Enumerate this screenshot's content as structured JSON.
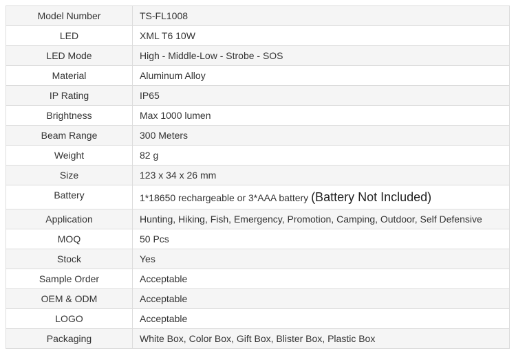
{
  "specs": [
    {
      "label": "Model Number",
      "value": "TS-FL1008"
    },
    {
      "label": "LED",
      "value": "XML T6  10W"
    },
    {
      "label": "LED Mode",
      "value": "High - Middle-Low - Strobe - SOS"
    },
    {
      "label": "Material",
      "value": "Aluminum Alloy"
    },
    {
      "label": "IP Rating",
      "value": "IP65"
    },
    {
      "label": "Brightness",
      "value": "Max 1000 lumen"
    },
    {
      "label": "Beam Range",
      "value": "300 Meters"
    },
    {
      "label": "Weight",
      "value": "82 g"
    },
    {
      "label": "Size",
      "value": "123 x 34 x 26 mm"
    },
    {
      "label": "Battery",
      "value": "1*18650 rechargeable or 3*AAA battery",
      "note": "(Battery Not Included)"
    },
    {
      "label": "Application",
      "value": "Hunting, Hiking, Fish, Emergency, Promotion, Camping, Outdoor, Self Defensive"
    },
    {
      "label": "MOQ",
      "value": "50 Pcs"
    },
    {
      "label": "Stock",
      "value": "Yes"
    },
    {
      "label": "Sample Order",
      "value": "Acceptable"
    },
    {
      "label": "OEM & ODM",
      "value": "Acceptable"
    },
    {
      "label": "LOGO",
      "value": "Acceptable"
    },
    {
      "label": "Packaging",
      "value": "White Box, Color Box, Gift Box, Blister Box, Plastic Box"
    }
  ]
}
